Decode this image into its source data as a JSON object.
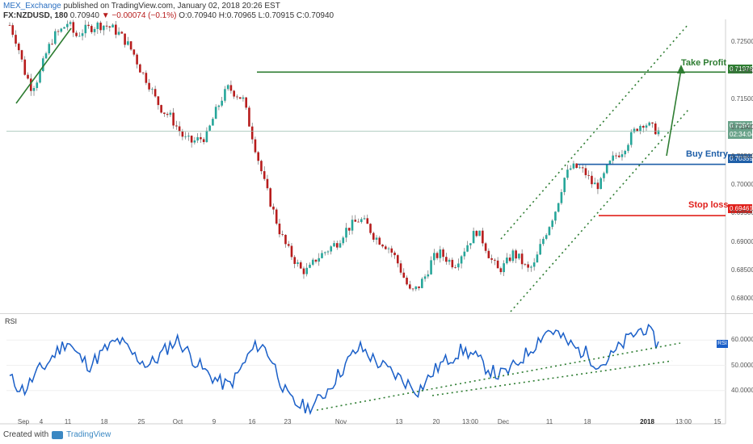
{
  "header": {
    "publisher": "MEX_Exchange",
    "published_text": "published on TradingView.com, January 02, 2018 20:26 EST",
    "symbol": "FX:NZDUSD, 180",
    "last": "0.70940",
    "change": "▼ −0.00074 (−0.1%)",
    "ohlc": "O:0.70940 H:0.70965 L:0.70915 C:0.70940"
  },
  "annotations": {
    "take_profit": "Take Profit",
    "buy_entry": "Buy Entry",
    "stop_loss": "Stop loss"
  },
  "price_tags": {
    "take_profit": "0.71976",
    "current": "0.70940",
    "countdown": "02:34:04",
    "buy_entry": "0.70359",
    "stop_loss": "0.69461"
  },
  "footer": {
    "created_with": "Created with",
    "brand": "TradingView"
  },
  "chart_data": {
    "type": "candlestick",
    "price_axis": {
      "ticks": [
        "0.72500",
        "0.72000",
        "0.71500",
        "0.71000",
        "0.70500",
        "0.70000",
        "0.69500",
        "0.69000",
        "0.68500",
        "0.68000"
      ],
      "range": [
        0.6775,
        0.729
      ]
    },
    "x_axis": {
      "labels": [
        "Sep",
        "4",
        "11",
        "18",
        "25",
        "Oct",
        "9",
        "16",
        "23",
        "Nov",
        "13",
        "20",
        "13:00",
        "Dec",
        "11",
        "18",
        "2018",
        "13:00",
        "15"
      ]
    },
    "price_series_approx": [
      [
        0.728,
        0.725,
        0.72,
        0.717,
        0.719,
        0.723,
        0.726,
        0.727,
        0.7285,
        0.726,
        0.727,
        0.7275,
        0.728,
        0.728,
        0.7275,
        0.7265,
        0.725,
        0.723,
        0.72,
        0.718,
        0.715,
        0.713,
        0.712,
        0.71,
        0.708,
        0.7075,
        0.708,
        0.7085,
        0.712,
        0.715,
        0.717,
        0.716,
        0.715,
        0.71,
        0.705,
        0.7,
        0.696,
        0.692,
        0.689,
        0.687,
        0.685,
        0.685,
        0.687,
        0.688,
        0.689,
        0.69,
        0.692,
        0.693,
        0.694,
        0.693,
        0.691,
        0.69,
        0.689,
        0.687,
        0.684,
        0.681,
        0.682,
        0.684,
        0.687,
        0.688,
        0.687,
        0.686,
        0.688,
        0.69,
        0.692,
        0.69,
        0.687,
        0.685,
        0.686,
        0.688,
        0.687,
        0.685,
        0.686,
        0.69,
        0.693,
        0.696,
        0.701,
        0.703,
        0.703,
        0.702,
        0.7,
        0.7,
        0.703,
        0.705,
        0.706,
        0.708,
        0.71,
        0.711,
        0.71,
        0.7094
      ]
    ],
    "levels": [
      {
        "name": "Take Profit",
        "value": 0.71976,
        "color": "#2e7d32"
      },
      {
        "name": "Buy Entry",
        "value": 0.70359,
        "color": "#1f5fa8"
      },
      {
        "name": "Stop loss",
        "value": 0.69461,
        "color": "#e0201b"
      }
    ],
    "current_price": 0.7094,
    "rsi": {
      "name": "RSI",
      "ticks": [
        "60.0000",
        "50.0000",
        "40.0000"
      ],
      "range": [
        30,
        70
      ],
      "values_approx": [
        45,
        42,
        40,
        44,
        48,
        50,
        54,
        57,
        60,
        55,
        52,
        50,
        53,
        56,
        58,
        60,
        57,
        54,
        52,
        50,
        52,
        55,
        58,
        60,
        57,
        53,
        50,
        47,
        45,
        43,
        42,
        45,
        50,
        55,
        58,
        57,
        52,
        45,
        38,
        35,
        34,
        33,
        35,
        38,
        42,
        46,
        50,
        54,
        57,
        55,
        52,
        50,
        48,
        46,
        44,
        42,
        40,
        43,
        47,
        50,
        52,
        54,
        56,
        55,
        53,
        50,
        48,
        46,
        47,
        49,
        52,
        55,
        58,
        62,
        64,
        63,
        60,
        58,
        56,
        55,
        52,
        50,
        52,
        55,
        58,
        61,
        63,
        65,
        62,
        58
      ]
    },
    "colors": {
      "up": "#26a69a",
      "down": "#b71c1c",
      "rsi": "#1a5fc8",
      "trend": "#2e7d32"
    }
  }
}
